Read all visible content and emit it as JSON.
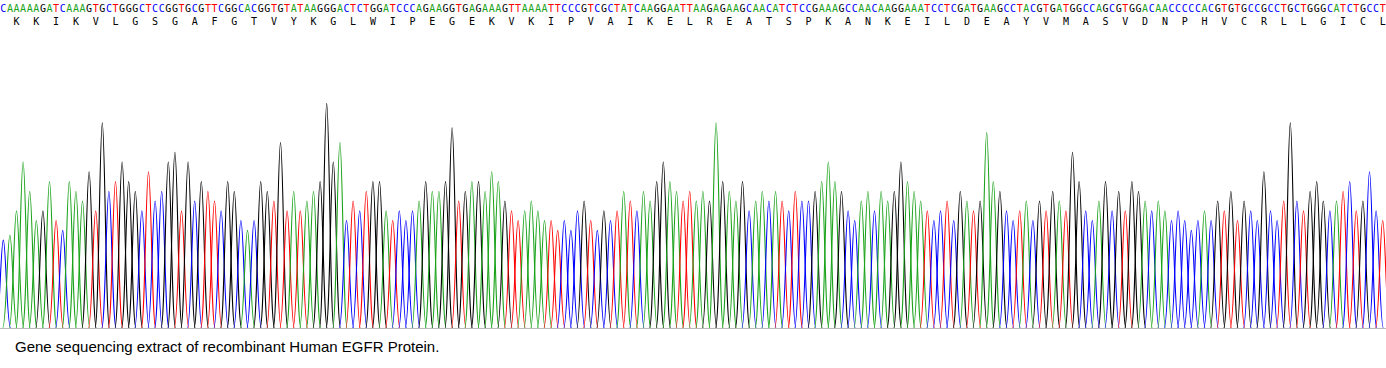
{
  "chart_data": {
    "type": "chromatogram",
    "caption": "Gene sequencing extract of recombinant Human EGFR Protein.",
    "protein": "KKIKVLGSGAFGTVYKGLWIPEGEKVKIPVAIKELREATSPKANKEILDEAYVMASVDNPHVCRLLGICL",
    "categories": [
      "C",
      "A",
      "A",
      "A",
      "A",
      "A",
      "G",
      "A",
      "T",
      "C",
      "A",
      "A",
      "A",
      "G",
      "T",
      "G",
      "C",
      "T",
      "G",
      "G",
      "G",
      "C",
      "T",
      "C",
      "C",
      "G",
      "G",
      "T",
      "G",
      "C",
      "G",
      "T",
      "T",
      "C",
      "G",
      "G",
      "C",
      "A",
      "C",
      "G",
      "G",
      "T",
      "G",
      "T",
      "A",
      "T",
      "A",
      "A",
      "G",
      "G",
      "G",
      "A",
      "C",
      "T",
      "C",
      "T",
      "G",
      "G",
      "A",
      "T",
      "C",
      "C",
      "C",
      "A",
      "G",
      "A",
      "A",
      "G",
      "G",
      "T",
      "G",
      "A",
      "G",
      "A",
      "A",
      "A",
      "G",
      "T",
      "T",
      "A",
      "A",
      "A",
      "A",
      "T",
      "T",
      "C",
      "C",
      "C",
      "G",
      "T",
      "C",
      "G",
      "C",
      "T",
      "A",
      "T",
      "C",
      "A",
      "A",
      "G",
      "G",
      "A",
      "A",
      "T",
      "T",
      "A",
      "A",
      "G",
      "A",
      "G",
      "A",
      "A",
      "G",
      "C",
      "A",
      "A",
      "C",
      "A",
      "T",
      "C",
      "T",
      "C",
      "C",
      "G",
      "A",
      "A",
      "A",
      "G",
      "C",
      "C",
      "A",
      "A",
      "C",
      "A",
      "A",
      "G",
      "G",
      "A",
      "A",
      "A",
      "T",
      "C",
      "C",
      "T",
      "C",
      "G",
      "A",
      "T",
      "G",
      "A",
      "A",
      "G",
      "C",
      "C",
      "T",
      "A",
      "C",
      "G",
      "T",
      "G",
      "A",
      "T",
      "G",
      "G",
      "C",
      "C",
      "A",
      "G",
      "C",
      "G",
      "T",
      "G",
      "G",
      "A",
      "C",
      "A",
      "A",
      "C",
      "C",
      "C",
      "C",
      "C",
      "A",
      "C",
      "G",
      "T",
      "G",
      "T",
      "G",
      "C",
      "C",
      "G",
      "C",
      "C",
      "T",
      "G",
      "C",
      "T",
      "G",
      "G",
      "G",
      "C",
      "A",
      "T",
      "C",
      "T",
      "G",
      "C",
      "C",
      "T"
    ],
    "values": [
      90,
      95,
      120,
      170,
      140,
      110,
      120,
      150,
      110,
      100,
      150,
      140,
      130,
      160,
      120,
      210,
      140,
      150,
      170,
      150,
      140,
      120,
      160,
      130,
      140,
      170,
      180,
      120,
      170,
      130,
      150,
      140,
      130,
      120,
      150,
      140,
      110,
      100,
      110,
      150,
      140,
      130,
      190,
      120,
      140,
      120,
      130,
      140,
      150,
      230,
      170,
      190,
      110,
      130,
      120,
      140,
      150,
      150,
      120,
      110,
      120,
      110,
      120,
      130,
      150,
      140,
      140,
      150,
      205,
      130,
      140,
      150,
      150,
      140,
      160,
      150,
      130,
      120,
      110,
      120,
      130,
      120,
      110,
      110,
      100,
      110,
      100,
      120,
      130,
      110,
      100,
      120,
      110,
      120,
      140,
      130,
      120,
      140,
      130,
      150,
      170,
      150,
      140,
      130,
      140,
      130,
      140,
      130,
      210,
      150,
      140,
      130,
      150,
      120,
      130,
      140,
      130,
      140,
      130,
      120,
      140,
      130,
      130,
      140,
      150,
      170,
      150,
      140,
      120,
      110,
      130,
      140,
      120,
      140,
      130,
      140,
      170,
      150,
      140,
      130,
      120,
      110,
      120,
      130,
      110,
      140,
      130,
      120,
      130,
      200,
      150,
      140,
      120,
      110,
      120,
      130,
      110,
      130,
      120,
      140,
      130,
      120,
      180,
      150,
      120,
      110,
      130,
      150,
      120,
      140,
      120,
      150,
      140,
      130,
      120,
      130,
      120,
      110,
      120,
      110,
      100,
      110,
      120,
      110,
      130,
      120,
      140,
      110,
      130,
      120,
      110,
      160,
      120,
      110,
      130,
      210,
      130,
      120,
      140,
      150,
      130,
      120,
      130,
      140,
      150,
      120,
      130,
      160,
      120,
      110
    ],
    "colors": [
      "#0000ff",
      "#1aa31a",
      "#1aa31a",
      "#1aa31a",
      "#1aa31a",
      "#1aa31a",
      "#000000",
      "#1aa31a",
      "#ff0000",
      "#0000ff",
      "#1aa31a",
      "#1aa31a",
      "#1aa31a",
      "#000000",
      "#ff0000",
      "#000000",
      "#0000ff",
      "#ff0000",
      "#000000",
      "#000000",
      "#000000",
      "#0000ff",
      "#ff0000",
      "#0000ff",
      "#0000ff",
      "#000000",
      "#000000",
      "#ff0000",
      "#000000",
      "#0000ff",
      "#000000",
      "#ff0000",
      "#ff0000",
      "#0000ff",
      "#000000",
      "#000000",
      "#0000ff",
      "#1aa31a",
      "#0000ff",
      "#000000",
      "#000000",
      "#ff0000",
      "#000000",
      "#ff0000",
      "#1aa31a",
      "#ff0000",
      "#1aa31a",
      "#1aa31a",
      "#000000",
      "#000000",
      "#000000",
      "#1aa31a",
      "#0000ff",
      "#ff0000",
      "#0000ff",
      "#ff0000",
      "#000000",
      "#000000",
      "#1aa31a",
      "#ff0000",
      "#0000ff",
      "#0000ff",
      "#0000ff",
      "#1aa31a",
      "#000000",
      "#1aa31a",
      "#1aa31a",
      "#000000",
      "#000000",
      "#ff0000",
      "#000000",
      "#1aa31a",
      "#000000",
      "#1aa31a",
      "#1aa31a",
      "#1aa31a",
      "#000000",
      "#ff0000",
      "#ff0000",
      "#1aa31a",
      "#1aa31a",
      "#1aa31a",
      "#1aa31a",
      "#ff0000",
      "#ff0000",
      "#0000ff",
      "#0000ff",
      "#0000ff",
      "#000000",
      "#ff0000",
      "#0000ff",
      "#000000",
      "#0000ff",
      "#ff0000",
      "#1aa31a",
      "#ff0000",
      "#0000ff",
      "#1aa31a",
      "#1aa31a",
      "#000000",
      "#000000",
      "#1aa31a",
      "#1aa31a",
      "#ff0000",
      "#ff0000",
      "#1aa31a",
      "#1aa31a",
      "#000000",
      "#1aa31a",
      "#000000",
      "#1aa31a",
      "#1aa31a",
      "#000000",
      "#0000ff",
      "#1aa31a",
      "#1aa31a",
      "#0000ff",
      "#1aa31a",
      "#ff0000",
      "#0000ff",
      "#ff0000",
      "#0000ff",
      "#0000ff",
      "#000000",
      "#1aa31a",
      "#1aa31a",
      "#1aa31a",
      "#000000",
      "#0000ff",
      "#0000ff",
      "#1aa31a",
      "#1aa31a",
      "#0000ff",
      "#1aa31a",
      "#1aa31a",
      "#000000",
      "#000000",
      "#1aa31a",
      "#1aa31a",
      "#1aa31a",
      "#ff0000",
      "#0000ff",
      "#0000ff",
      "#ff0000",
      "#0000ff",
      "#000000",
      "#1aa31a",
      "#ff0000",
      "#000000",
      "#1aa31a",
      "#1aa31a",
      "#000000",
      "#0000ff",
      "#0000ff",
      "#ff0000",
      "#1aa31a",
      "#0000ff",
      "#000000",
      "#ff0000",
      "#000000",
      "#1aa31a",
      "#ff0000",
      "#000000",
      "#000000",
      "#0000ff",
      "#0000ff",
      "#1aa31a",
      "#000000",
      "#0000ff",
      "#000000",
      "#ff0000",
      "#000000",
      "#000000",
      "#1aa31a",
      "#0000ff",
      "#1aa31a",
      "#1aa31a",
      "#0000ff",
      "#0000ff",
      "#0000ff",
      "#0000ff",
      "#0000ff",
      "#1aa31a",
      "#0000ff",
      "#000000",
      "#ff0000",
      "#000000",
      "#ff0000",
      "#000000",
      "#0000ff",
      "#0000ff",
      "#000000",
      "#0000ff",
      "#0000ff",
      "#ff0000",
      "#000000",
      "#0000ff",
      "#ff0000",
      "#000000",
      "#000000",
      "#000000",
      "#0000ff",
      "#1aa31a",
      "#ff0000",
      "#0000ff",
      "#ff0000",
      "#000000",
      "#0000ff",
      "#0000ff",
      "#ff0000"
    ],
    "xlim": [
      -0.5,
      209.5
    ],
    "ylim": [
      0,
      300
    ],
    "tick_labels": false,
    "grid": false
  }
}
